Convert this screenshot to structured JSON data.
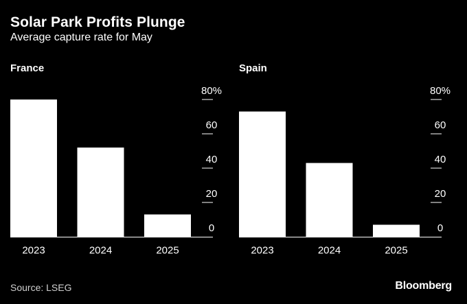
{
  "header": {
    "title": "Solar Park Profits Plunge",
    "subtitle": "Average capture rate for May"
  },
  "footer": {
    "source": "Source: LSEG",
    "brand": "Bloomberg"
  },
  "colors": {
    "background": "#000000",
    "bar": "#ffffff",
    "text": "#ffffff",
    "axis": "#ffffff"
  },
  "chart_data": [
    {
      "type": "bar",
      "title": "France",
      "categories": [
        "2023",
        "2024",
        "2025"
      ],
      "values": [
        80,
        52,
        13
      ],
      "ylim": [
        0,
        80
      ],
      "yticks": [
        0,
        20,
        40,
        60,
        80
      ],
      "ytick_labels": [
        "0",
        "20",
        "40",
        "60",
        "80%"
      ],
      "xlabel": "",
      "ylabel": ""
    },
    {
      "type": "bar",
      "title": "Spain",
      "categories": [
        "2023",
        "2024",
        "2025"
      ],
      "values": [
        73,
        43,
        7
      ],
      "ylim": [
        0,
        80
      ],
      "yticks": [
        0,
        20,
        40,
        60,
        80
      ],
      "ytick_labels": [
        "0",
        "20",
        "40",
        "60",
        "80%"
      ],
      "xlabel": "",
      "ylabel": ""
    }
  ]
}
